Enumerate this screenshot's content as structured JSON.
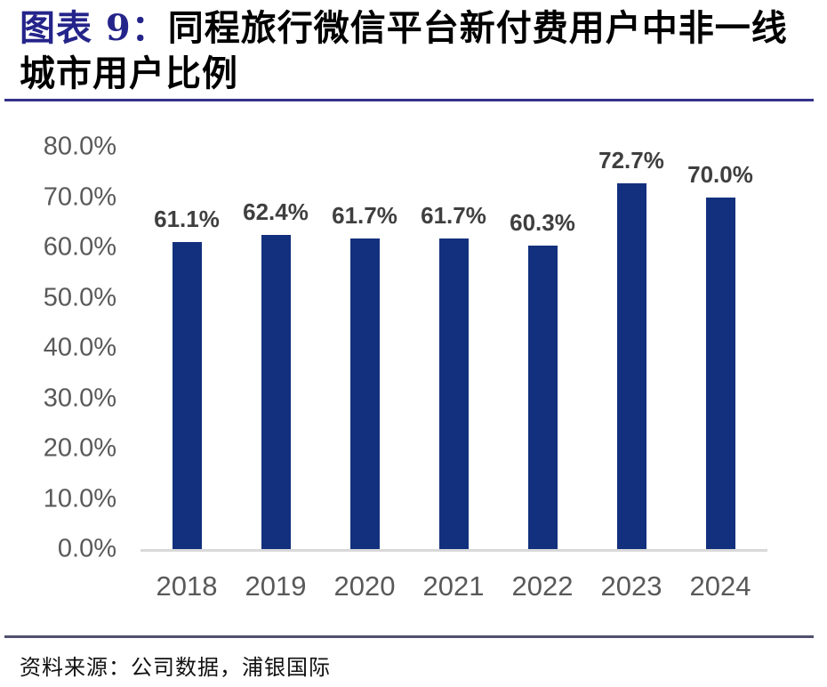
{
  "header": {
    "figure_label": "图表 9：",
    "title": "同程旅行微信平台新付费用户中非一线城市用户比例"
  },
  "chart_data": {
    "type": "bar",
    "title": "同程旅行微信平台新付费用户中非一线城市用户比例",
    "categories": [
      "2018",
      "2019",
      "2020",
      "2021",
      "2022",
      "2023",
      "2024"
    ],
    "values": [
      61.1,
      62.4,
      61.7,
      61.7,
      60.3,
      72.7,
      70.0
    ],
    "data_labels": [
      "61.1%",
      "62.4%",
      "61.7%",
      "61.7%",
      "60.3%",
      "72.7%",
      "70.0%"
    ],
    "xlabel": "",
    "ylabel": "",
    "ylim": [
      0,
      80
    ],
    "ytick_step": 10,
    "ytick_labels": [
      "0.0%",
      "10.0%",
      "20.0%",
      "30.0%",
      "40.0%",
      "50.0%",
      "60.0%",
      "70.0%",
      "80.0%"
    ],
    "grid": false,
    "legend": null,
    "bar_color": "#12307D",
    "axis_line_color": "#D9D9D9",
    "data_label_color": "#3F3F3F",
    "tick_label_color": "#595959"
  },
  "footer": {
    "source": "资料来源：公司数据，浦银国际"
  },
  "colors": {
    "figure_label_navy": "#24248A",
    "title_rule": "#33338A",
    "footer_rule": "#50506E",
    "background": "#FFFFFF"
  }
}
